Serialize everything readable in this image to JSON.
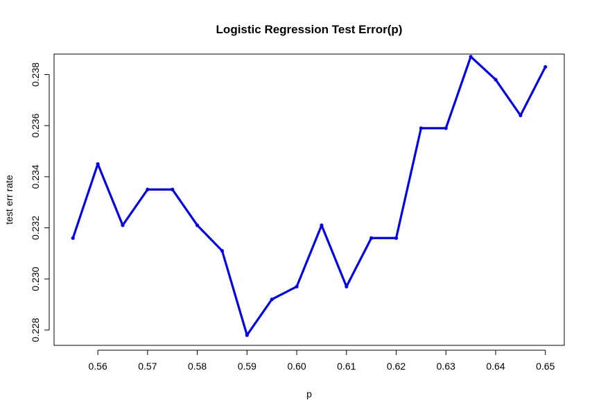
{
  "chart_data": {
    "type": "line",
    "title": "Logistic Regression Test Error(p)",
    "xlabel": "p",
    "ylabel": "test err rate",
    "xlim": [
      0.5512,
      0.6538
    ],
    "ylim": [
      0.2274,
      0.2388
    ],
    "x_ticks": [
      0.56,
      0.57,
      0.58,
      0.59,
      0.6,
      0.61,
      0.62,
      0.63,
      0.64,
      0.65
    ],
    "x_tick_labels": [
      "0.56",
      "0.57",
      "0.58",
      "0.59",
      "0.60",
      "0.61",
      "0.62",
      "0.63",
      "0.64",
      "0.65"
    ],
    "y_ticks": [
      0.228,
      0.23,
      0.232,
      0.234,
      0.236,
      0.238
    ],
    "y_tick_labels": [
      "0.228",
      "0.230",
      "0.232",
      "0.234",
      "0.236",
      "0.238"
    ],
    "grid": false,
    "series": [
      {
        "color": "#0000ee",
        "x": [
          0.555,
          0.56,
          0.565,
          0.57,
          0.575,
          0.58,
          0.585,
          0.59,
          0.595,
          0.6,
          0.605,
          0.61,
          0.615,
          0.62,
          0.625,
          0.63,
          0.635,
          0.64,
          0.645,
          0.65
        ],
        "values": [
          0.2316,
          0.2345,
          0.2321,
          0.2335,
          0.2335,
          0.2321,
          0.2311,
          0.2278,
          0.2292,
          0.2297,
          0.2321,
          0.2297,
          0.2316,
          0.2316,
          0.2359,
          0.2359,
          0.2387,
          0.2378,
          0.2364,
          0.2383
        ]
      }
    ]
  }
}
